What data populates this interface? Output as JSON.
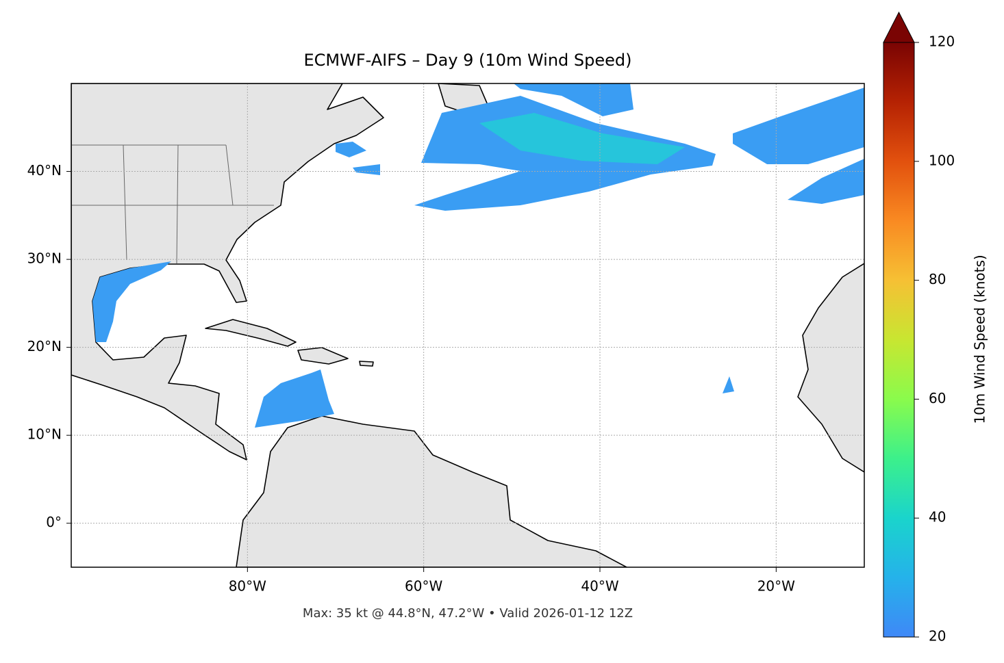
{
  "title": "ECMWF-AIFS – Day 9 (10m Wind Speed)",
  "map": {
    "xlim": [
      -100,
      -10
    ],
    "ylim": [
      -5,
      50
    ],
    "grid": true,
    "xticks": [
      {
        "value": -80,
        "label": "80°W"
      },
      {
        "value": -60,
        "label": "60°W"
      },
      {
        "value": -40,
        "label": "40°W"
      },
      {
        "value": -20,
        "label": "20°W"
      }
    ],
    "yticks": [
      {
        "value": 0,
        "label": "0°"
      },
      {
        "value": 10,
        "label": "10°N"
      },
      {
        "value": 20,
        "label": "20°N"
      },
      {
        "value": 30,
        "label": "30°N"
      },
      {
        "value": 40,
        "label": "40°N"
      }
    ]
  },
  "colorbar": {
    "label": "10m Wind Speed (knots)",
    "lim": [
      20,
      120
    ],
    "ticks": [
      20,
      40,
      60,
      80,
      100,
      120
    ]
  },
  "footer": "Max: 35 kt @ 44.8°N, 47.2°W • Valid 2026-01-12 12Z"
}
